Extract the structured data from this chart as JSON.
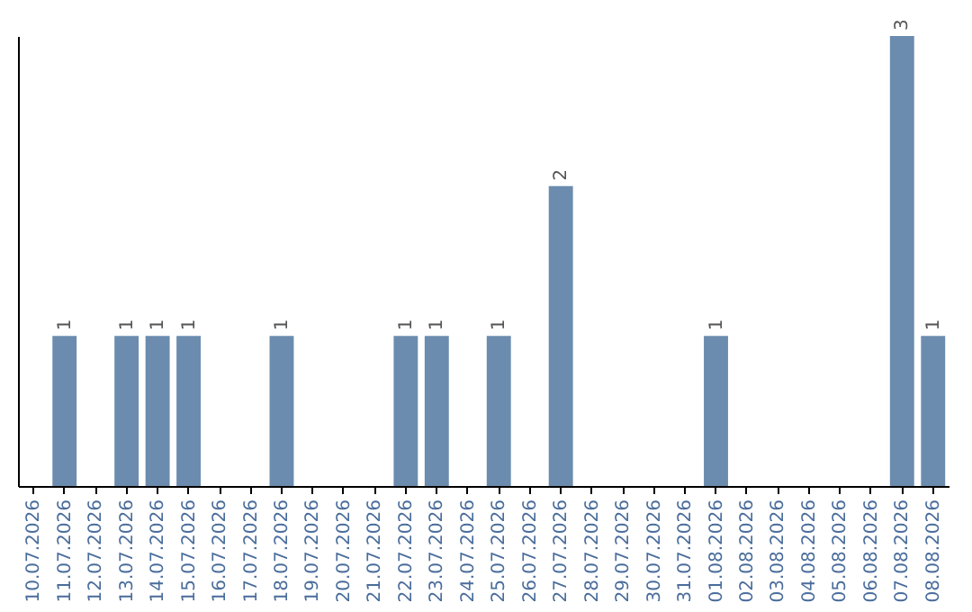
{
  "chart_data": {
    "type": "bar",
    "categories": [
      "10.07.2026",
      "11.07.2026",
      "12.07.2026",
      "13.07.2026",
      "14.07.2026",
      "15.07.2026",
      "16.07.2026",
      "17.07.2026",
      "18.07.2026",
      "19.07.2026",
      "20.07.2026",
      "21.07.2026",
      "22.07.2026",
      "23.07.2026",
      "24.07.2026",
      "25.07.2026",
      "26.07.2026",
      "27.07.2026",
      "28.07.2026",
      "29.07.2026",
      "30.07.2026",
      "31.07.2026",
      "01.08.2026",
      "02.08.2026",
      "03.08.2026",
      "04.08.2026",
      "05.08.2026",
      "06.08.2026",
      "07.08.2026",
      "08.08.2026"
    ],
    "values": [
      0,
      1,
      0,
      1,
      1,
      1,
      0,
      0,
      1,
      0,
      0,
      0,
      1,
      1,
      0,
      1,
      0,
      2,
      0,
      0,
      0,
      0,
      1,
      0,
      0,
      0,
      0,
      0,
      3,
      1
    ],
    "value_labels": [
      null,
      "1",
      null,
      "1",
      "1",
      "1",
      null,
      null,
      "1",
      null,
      null,
      null,
      "1",
      "1",
      null,
      "1",
      null,
      "2",
      null,
      null,
      null,
      null,
      "1",
      null,
      null,
      null,
      null,
      null,
      "3",
      "1"
    ],
    "color": "#6b8cae",
    "tick_labels": "x"
  }
}
